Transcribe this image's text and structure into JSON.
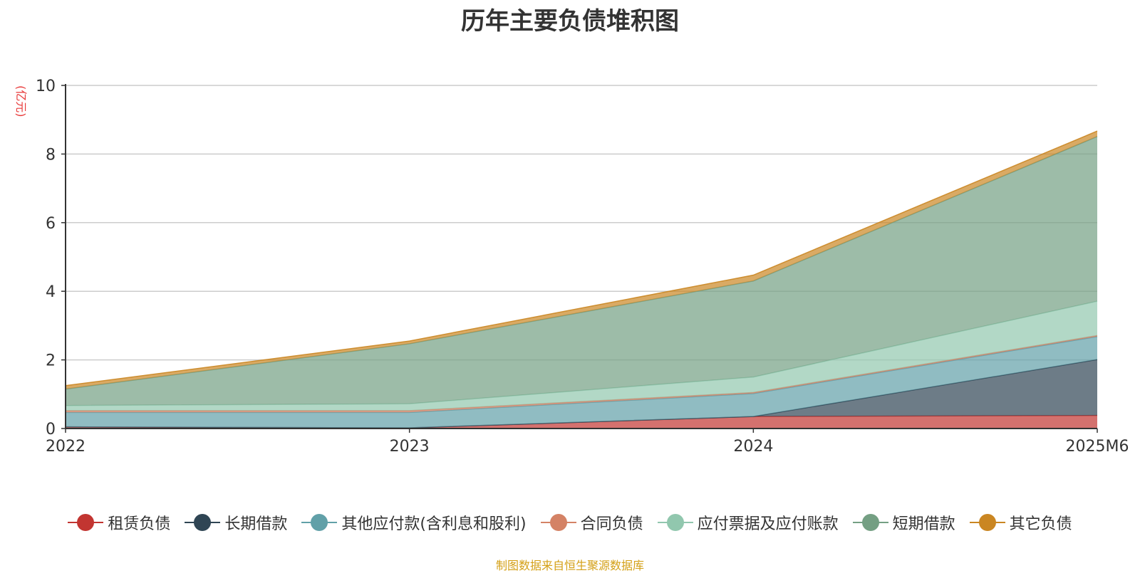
{
  "chart_data": {
    "type": "area",
    "title": "历年主要负债堆积图",
    "ylabel": "(亿元)",
    "categories": [
      "2022",
      "2023",
      "2024",
      "2025M6"
    ],
    "ylim": [
      0,
      10
    ],
    "yticks": [
      0,
      2,
      4,
      6,
      8,
      10
    ],
    "stacked": true,
    "grid": true,
    "legend_position": "bottom",
    "series": [
      {
        "name": "租赁负债",
        "color": "#c23531",
        "values": [
          0.05,
          0.02,
          0.35,
          0.38
        ]
      },
      {
        "name": "长期借款",
        "color": "#2f4554",
        "values": [
          0.0,
          0.0,
          0.0,
          1.63
        ]
      },
      {
        "name": "其他应付款(含利息和股利)",
        "color": "#61a0a8",
        "values": [
          0.42,
          0.45,
          0.67,
          0.67
        ]
      },
      {
        "name": "合同负债",
        "color": "#d48265",
        "values": [
          0.05,
          0.05,
          0.03,
          0.03
        ]
      },
      {
        "name": "应付票据及应付账款",
        "color": "#91c7ae",
        "values": [
          0.15,
          0.2,
          0.45,
          1.0
        ]
      },
      {
        "name": "短期借款",
        "color": "#749f83",
        "values": [
          0.48,
          1.75,
          2.8,
          4.8
        ]
      },
      {
        "name": "其它负债",
        "color": "#ca8622",
        "values": [
          0.1,
          0.08,
          0.17,
          0.16
        ]
      }
    ],
    "source": "制图数据来自恒生聚源数据库"
  }
}
